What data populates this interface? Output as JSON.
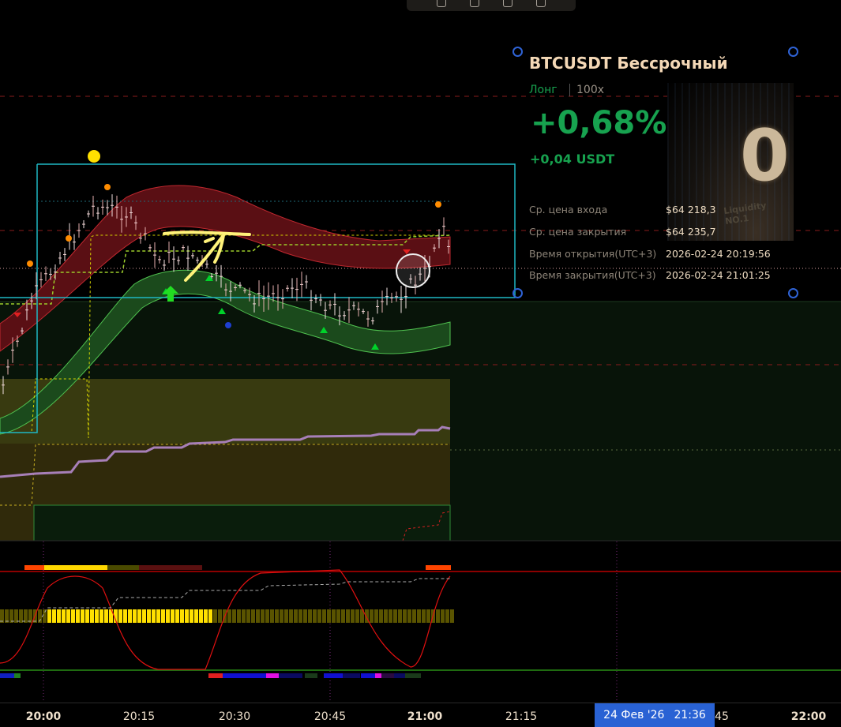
{
  "card": {
    "title": "BTCUSDT Бессрочный",
    "side": "Лонг",
    "leverage": "100x",
    "pnl_percent": "+0,68%",
    "pnl_amount": "+0,04 USDT",
    "image_text": "Liquidity NO.1",
    "rows": [
      {
        "label": "Ср. цена входа",
        "value": "$64 218,3"
      },
      {
        "label": "Ср. цена закрытия",
        "value": "$64 235,7"
      },
      {
        "label": "Время открытия(UTC+3)",
        "value": "2026-02-24 20:19:56"
      },
      {
        "label": "Время закрытия(UTC+3)",
        "value": "2026-02-24 21:01:25"
      }
    ]
  },
  "time_axis": {
    "ticks": [
      "20:00",
      "20:15",
      "20:30",
      "20:45",
      "21:00",
      "21:15",
      "45",
      "22:00"
    ],
    "crosshair_date": "24 Фев '26",
    "crosshair_time": "21:36"
  },
  "colors": {
    "profit": "#17a24f",
    "title": "#f4d8b6",
    "selection_box": "#1fb8c4",
    "crosshair_label": "#2962d4"
  },
  "icons": [
    "toolbar-icons",
    "selection-handle-icon",
    "buy-arrow-icon",
    "signal-triangle-icon"
  ]
}
